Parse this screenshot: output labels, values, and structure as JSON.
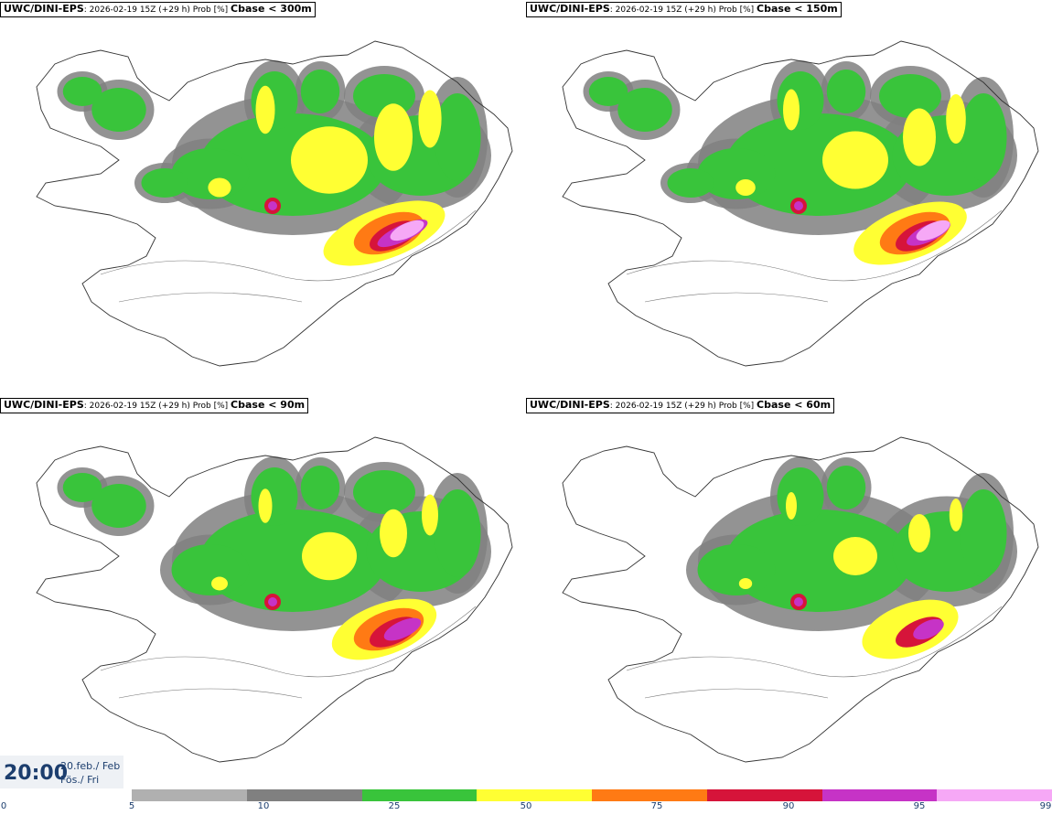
{
  "panels": [
    {
      "model": "UWC/DINI-EPS",
      "run": "2026-02-19 15Z (+29 h) Prob [%]",
      "var": "Cbase < 300m"
    },
    {
      "model": "UWC/DINI-EPS",
      "run": "2026-02-19 15Z (+29 h) Prob [%]",
      "var": "Cbase < 150m"
    },
    {
      "model": "UWC/DINI-EPS",
      "run": "2026-02-19 15Z (+29 h) Prob [%]",
      "var": "Cbase < 90m"
    },
    {
      "model": "UWC/DINI-EPS",
      "run": "2026-02-19 15Z (+29 h) Prob [%]",
      "var": "Cbase < 60m"
    }
  ],
  "time": {
    "clock": "20:00",
    "date_line1": "20.feb./ Feb",
    "date_line2": "Fös./ Fri"
  },
  "colorbar": {
    "labels": [
      "0",
      "5",
      "10",
      "25",
      "50",
      "75",
      "90",
      "95",
      "99"
    ],
    "colors": [
      "#b0b0b0",
      "#808080",
      "#39c43b",
      "#ffff33",
      "#ff7a14",
      "#d6143a",
      "#c633c6",
      "#f6a8f6"
    ]
  }
}
